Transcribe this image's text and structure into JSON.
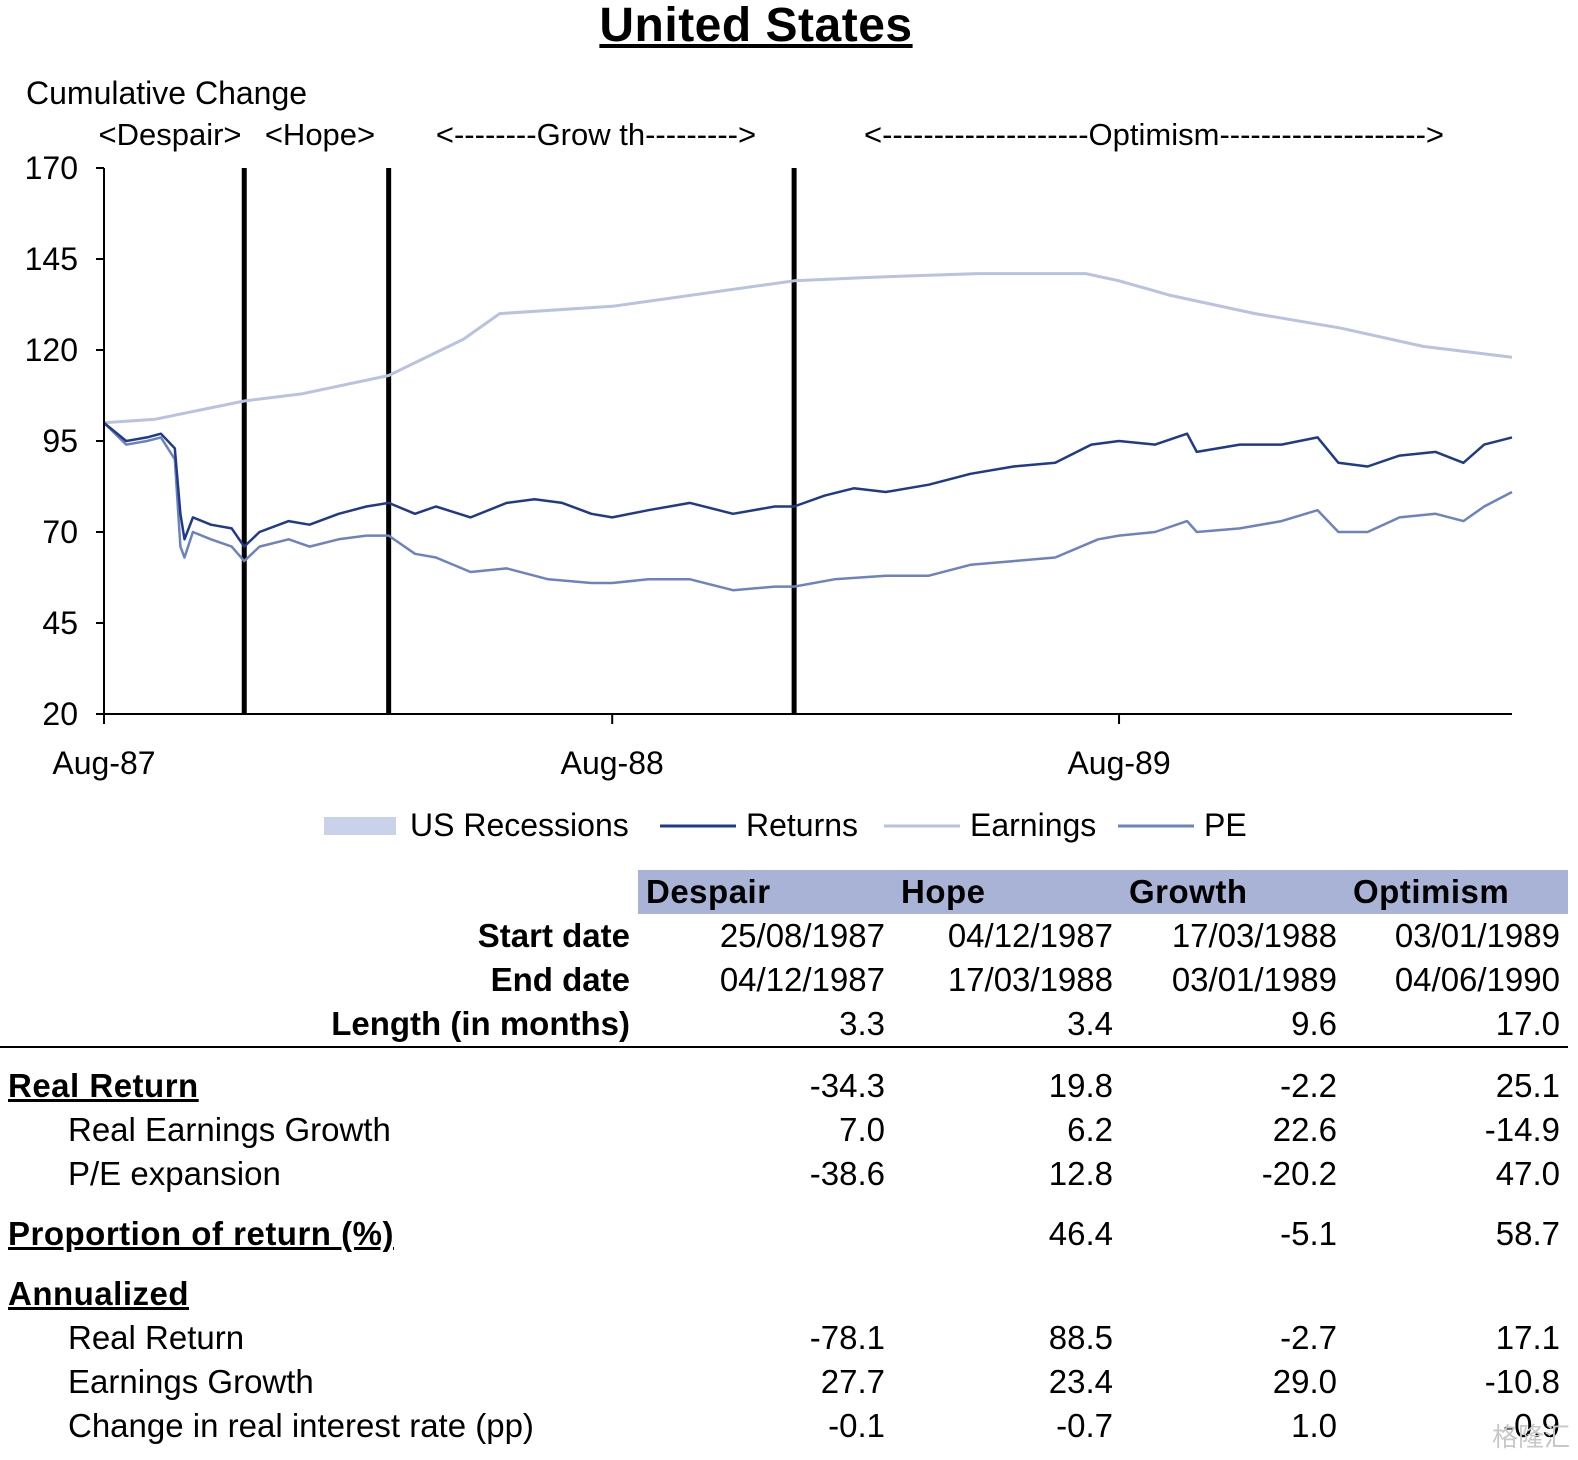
{
  "title": "United States",
  "chart_data": {
    "type": "line",
    "ylabel": "Cumulative Change",
    "ylim": [
      20,
      170
    ],
    "yticks": [
      170,
      145,
      120,
      95,
      70,
      45,
      20
    ],
    "x_range": [
      "1987-08-25",
      "1990-06-04"
    ],
    "xticks": [
      {
        "label": "Aug-87",
        "date": "1987-08-25"
      },
      {
        "label": "Aug-88",
        "date": "1988-08-25"
      },
      {
        "label": "Aug-89",
        "date": "1989-08-25"
      }
    ],
    "phase_boundaries": [
      "1987-12-04",
      "1988-03-17",
      "1989-01-03"
    ],
    "phase_labels": [
      "<Despair>",
      "<Hope>",
      "<--------Grow th--------->",
      "<--------------------Optimism-------------------->"
    ],
    "legend": [
      "US Recessions",
      "Returns",
      "Earnings",
      "PE"
    ],
    "series": [
      {
        "name": "Returns",
        "color": "#1f3a8a",
        "points": [
          [
            "1987-08-25",
            100
          ],
          [
            "1987-09-10",
            95
          ],
          [
            "1987-09-25",
            96
          ],
          [
            "1987-10-05",
            97
          ],
          [
            "1987-10-15",
            93
          ],
          [
            "1987-10-19",
            75
          ],
          [
            "1987-10-22",
            68
          ],
          [
            "1987-10-28",
            74
          ],
          [
            "1987-11-10",
            72
          ],
          [
            "1987-11-25",
            71
          ],
          [
            "1987-12-04",
            66
          ],
          [
            "1987-12-15",
            70
          ],
          [
            "1988-01-05",
            73
          ],
          [
            "1988-01-20",
            72
          ],
          [
            "1988-02-10",
            75
          ],
          [
            "1988-03-01",
            77
          ],
          [
            "1988-03-17",
            78
          ],
          [
            "1988-04-05",
            75
          ],
          [
            "1988-04-20",
            77
          ],
          [
            "1988-05-15",
            74
          ],
          [
            "1988-06-10",
            78
          ],
          [
            "1988-06-30",
            79
          ],
          [
            "1988-07-20",
            78
          ],
          [
            "1988-08-10",
            75
          ],
          [
            "1988-08-25",
            74
          ],
          [
            "1988-09-20",
            76
          ],
          [
            "1988-10-20",
            78
          ],
          [
            "1988-11-20",
            75
          ],
          [
            "1988-12-20",
            77
          ],
          [
            "1989-01-03",
            77
          ],
          [
            "1989-01-25",
            80
          ],
          [
            "1989-02-15",
            82
          ],
          [
            "1989-03-10",
            81
          ],
          [
            "1989-04-10",
            83
          ],
          [
            "1989-05-10",
            86
          ],
          [
            "1989-06-10",
            88
          ],
          [
            "1989-07-10",
            89
          ],
          [
            "1989-08-05",
            94
          ],
          [
            "1989-08-25",
            95
          ],
          [
            "1989-09-20",
            94
          ],
          [
            "1989-10-13",
            97
          ],
          [
            "1989-10-20",
            92
          ],
          [
            "1989-11-20",
            94
          ],
          [
            "1989-12-20",
            94
          ],
          [
            "1990-01-15",
            96
          ],
          [
            "1990-01-30",
            89
          ],
          [
            "1990-02-20",
            88
          ],
          [
            "1990-03-15",
            91
          ],
          [
            "1990-04-10",
            92
          ],
          [
            "1990-04-30",
            89
          ],
          [
            "1990-05-15",
            94
          ],
          [
            "1990-06-04",
            96
          ]
        ]
      },
      {
        "name": "Earnings",
        "color": "#b8c3e0",
        "points": [
          [
            "1987-08-25",
            100
          ],
          [
            "1987-10-01",
            101
          ],
          [
            "1987-12-04",
            106
          ],
          [
            "1988-01-15",
            108
          ],
          [
            "1988-03-17",
            113
          ],
          [
            "1988-05-10",
            123
          ],
          [
            "1988-06-05",
            130
          ],
          [
            "1988-08-25",
            132
          ],
          [
            "1989-01-03",
            139
          ],
          [
            "1989-03-01",
            140
          ],
          [
            "1989-05-15",
            141
          ],
          [
            "1989-08-01",
            141
          ],
          [
            "1989-08-25",
            139
          ],
          [
            "1989-10-01",
            135
          ],
          [
            "1989-12-01",
            130
          ],
          [
            "1990-02-01",
            126
          ],
          [
            "1990-04-01",
            121
          ],
          [
            "1990-06-04",
            118
          ]
        ]
      },
      {
        "name": "PE",
        "color": "#6d83bf",
        "points": [
          [
            "1987-08-25",
            100
          ],
          [
            "1987-09-10",
            94
          ],
          [
            "1987-09-25",
            95
          ],
          [
            "1987-10-05",
            96
          ],
          [
            "1987-10-15",
            90
          ],
          [
            "1987-10-19",
            66
          ],
          [
            "1987-10-22",
            63
          ],
          [
            "1987-10-28",
            70
          ],
          [
            "1987-11-10",
            68
          ],
          [
            "1987-11-25",
            66
          ],
          [
            "1987-12-04",
            62
          ],
          [
            "1987-12-15",
            66
          ],
          [
            "1988-01-05",
            68
          ],
          [
            "1988-01-20",
            66
          ],
          [
            "1988-02-10",
            68
          ],
          [
            "1988-03-01",
            69
          ],
          [
            "1988-03-17",
            69
          ],
          [
            "1988-04-05",
            64
          ],
          [
            "1988-04-20",
            63
          ],
          [
            "1988-05-15",
            59
          ],
          [
            "1988-06-10",
            60
          ],
          [
            "1988-07-10",
            57
          ],
          [
            "1988-08-10",
            56
          ],
          [
            "1988-08-25",
            56
          ],
          [
            "1988-09-20",
            57
          ],
          [
            "1988-10-20",
            57
          ],
          [
            "1988-11-20",
            54
          ],
          [
            "1988-12-20",
            55
          ],
          [
            "1989-01-03",
            55
          ],
          [
            "1989-02-01",
            57
          ],
          [
            "1989-03-10",
            58
          ],
          [
            "1989-04-10",
            58
          ],
          [
            "1989-05-10",
            61
          ],
          [
            "1989-06-10",
            62
          ],
          [
            "1989-07-10",
            63
          ],
          [
            "1989-08-10",
            68
          ],
          [
            "1989-08-25",
            69
          ],
          [
            "1989-09-20",
            70
          ],
          [
            "1989-10-13",
            73
          ],
          [
            "1989-10-20",
            70
          ],
          [
            "1989-11-20",
            71
          ],
          [
            "1989-12-20",
            73
          ],
          [
            "1990-01-15",
            76
          ],
          [
            "1990-01-30",
            70
          ],
          [
            "1990-02-20",
            70
          ],
          [
            "1990-03-15",
            74
          ],
          [
            "1990-04-10",
            75
          ],
          [
            "1990-04-30",
            73
          ],
          [
            "1990-05-15",
            77
          ],
          [
            "1990-06-04",
            81
          ]
        ]
      }
    ]
  },
  "table": {
    "phases": [
      "Despair",
      "Hope",
      "Growth",
      "Optimism"
    ],
    "rows": [
      {
        "label": "Start date",
        "values": [
          "25/08/1987",
          "04/12/1987",
          "17/03/1988",
          "03/01/1989"
        ]
      },
      {
        "label": "End date",
        "values": [
          "04/12/1987",
          "17/03/1988",
          "03/01/1989",
          "04/06/1990"
        ]
      },
      {
        "label": "Length (in months)",
        "values": [
          "3.3",
          "3.4",
          "9.6",
          "17.0"
        ]
      }
    ],
    "real_return": {
      "label": "Real Return",
      "values": [
        "-34.3",
        "19.8",
        "-2.2",
        "25.1"
      ]
    },
    "real_earnings_growth": {
      "label": "Real Earnings Growth",
      "values": [
        "7.0",
        "6.2",
        "22.6",
        "-14.9"
      ]
    },
    "pe_expansion": {
      "label": "P/E expansion",
      "values": [
        "-38.6",
        "12.8",
        "-20.2",
        "47.0"
      ]
    },
    "proportion": {
      "label": "Proportion of return (%)",
      "values": [
        "",
        "46.4",
        "-5.1",
        "58.7"
      ]
    },
    "annualized": {
      "label": "Annualized"
    },
    "ann_real_return": {
      "label": "Real Return",
      "values": [
        "-78.1",
        "88.5",
        "-2.7",
        "17.1"
      ]
    },
    "ann_earnings_growth": {
      "label": "Earnings Growth",
      "values": [
        "27.7",
        "23.4",
        "29.0",
        "-10.8"
      ]
    },
    "ann_interest": {
      "label": "Change in real interest rate (pp)",
      "values": [
        "-0.1",
        "-0.7",
        "1.0",
        "-0.9"
      ]
    }
  },
  "watermark": "格隆汇"
}
